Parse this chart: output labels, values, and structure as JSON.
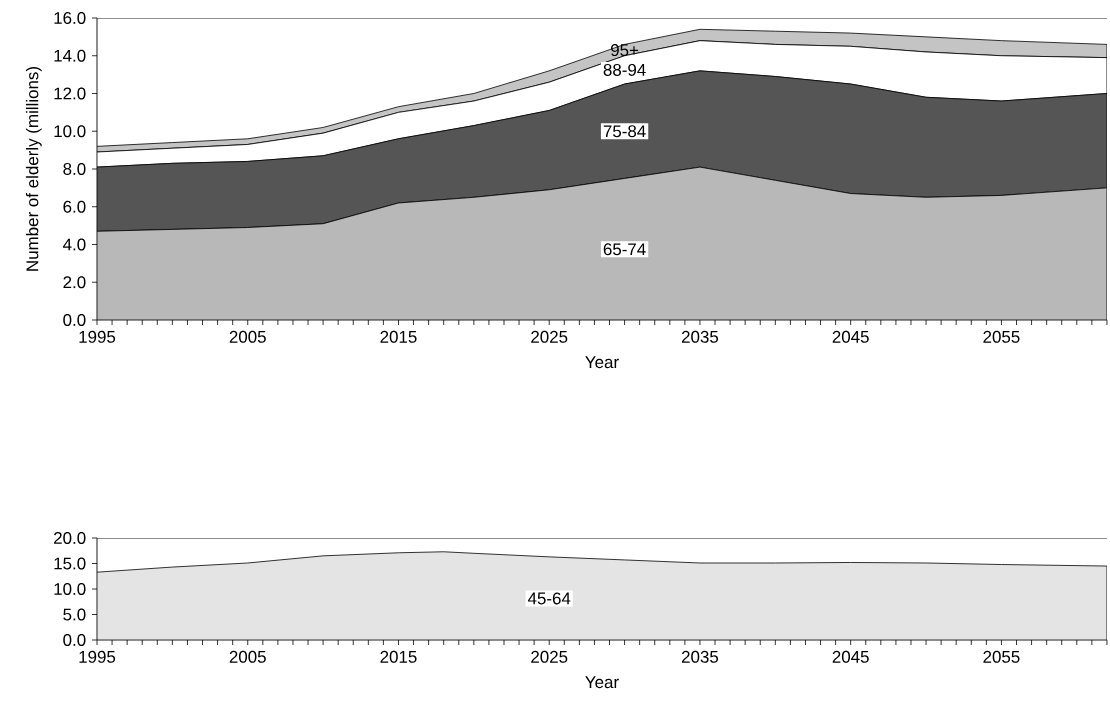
{
  "chart_data": [
    {
      "type": "area",
      "stacked": true,
      "xlabel": "Year",
      "ylabel": "Number of elderly (millions)",
      "x": [
        1995,
        2000,
        2005,
        2010,
        2015,
        2020,
        2025,
        2030,
        2035,
        2040,
        2045,
        2050,
        2055,
        2062
      ],
      "series": [
        {
          "name": "65-74",
          "color": "#b8b8b8",
          "values": [
            4.7,
            4.8,
            4.9,
            5.1,
            6.2,
            6.5,
            6.9,
            7.5,
            8.1,
            7.4,
            6.7,
            6.5,
            6.6,
            7.0
          ]
        },
        {
          "name": "75-84",
          "color": "#555555",
          "values": [
            3.4,
            3.5,
            3.5,
            3.6,
            3.4,
            3.8,
            4.2,
            5.0,
            5.1,
            5.5,
            5.8,
            5.3,
            5.0,
            5.0
          ]
        },
        {
          "name": "88-94",
          "color": "#ffffff",
          "values": [
            0.8,
            0.8,
            0.9,
            1.2,
            1.4,
            1.3,
            1.5,
            1.5,
            1.6,
            1.7,
            2.0,
            2.4,
            2.4,
            1.9
          ]
        },
        {
          "name": "95+",
          "color": "#c4c4c4",
          "values": [
            0.3,
            0.3,
            0.3,
            0.3,
            0.3,
            0.4,
            0.6,
            0.6,
            0.6,
            0.7,
            0.7,
            0.8,
            0.8,
            0.7
          ]
        }
      ],
      "xlim": [
        1995,
        2062
      ],
      "ylim": [
        0,
        16
      ],
      "xticks": [
        1995,
        {
          "value": 1996,
          "label": null
        },
        {
          "value": 1997,
          "label": null
        },
        {
          "value": 1998,
          "label": null
        },
        {
          "value": 1999,
          "label": null
        },
        {
          "value": 2000,
          "label": null
        },
        {
          "value": 2001,
          "label": null
        },
        {
          "value": 2002,
          "label": null
        },
        {
          "value": 2003,
          "label": null
        },
        {
          "value": 2004,
          "label": null
        },
        2005,
        {
          "value": 2006,
          "label": null
        },
        {
          "value": 2007,
          "label": null
        },
        {
          "value": 2008,
          "label": null
        },
        {
          "value": 2009,
          "label": null
        },
        {
          "value": 2010,
          "label": null
        },
        {
          "value": 2011,
          "label": null
        },
        {
          "value": 2012,
          "label": null
        },
        {
          "value": 2013,
          "label": null
        },
        {
          "value": 2014,
          "label": null
        },
        2015,
        {
          "value": 2016,
          "label": null
        },
        {
          "value": 2017,
          "label": null
        },
        {
          "value": 2018,
          "label": null
        },
        {
          "value": 2019,
          "label": null
        },
        {
          "value": 2020,
          "label": null
        },
        {
          "value": 2021,
          "label": null
        },
        {
          "value": 2022,
          "label": null
        },
        {
          "value": 2023,
          "label": null
        },
        {
          "value": 2024,
          "label": null
        },
        2025,
        {
          "value": 2026,
          "label": null
        },
        {
          "value": 2027,
          "label": null
        },
        {
          "value": 2028,
          "label": null
        },
        {
          "value": 2029,
          "label": null
        },
        {
          "value": 2030,
          "label": null
        },
        {
          "value": 2031,
          "label": null
        },
        {
          "value": 2032,
          "label": null
        },
        {
          "value": 2033,
          "label": null
        },
        {
          "value": 2034,
          "label": null
        },
        2035,
        {
          "value": 2036,
          "label": null
        },
        {
          "value": 2037,
          "label": null
        },
        {
          "value": 2038,
          "label": null
        },
        {
          "value": 2039,
          "label": null
        },
        {
          "value": 2040,
          "label": null
        },
        {
          "value": 2041,
          "label": null
        },
        {
          "value": 2042,
          "label": null
        },
        {
          "value": 2043,
          "label": null
        },
        {
          "value": 2044,
          "label": null
        },
        2045,
        {
          "value": 2046,
          "label": null
        },
        {
          "value": 2047,
          "label": null
        },
        {
          "value": 2048,
          "label": null
        },
        {
          "value": 2049,
          "label": null
        },
        {
          "value": 2050,
          "label": null
        },
        {
          "value": 2051,
          "label": null
        },
        {
          "value": 2052,
          "label": null
        },
        {
          "value": 2053,
          "label": null
        },
        {
          "value": 2054,
          "label": null
        },
        2055,
        {
          "value": 2056,
          "label": null
        },
        {
          "value": 2057,
          "label": null
        },
        {
          "value": 2058,
          "label": null
        },
        {
          "value": 2059,
          "label": null
        },
        {
          "value": 2060,
          "label": null
        },
        {
          "value": 2061,
          "label": null
        },
        {
          "value": 2062,
          "label": null
        }
      ],
      "yticks": [
        {
          "value": 0,
          "label": "0.0"
        },
        {
          "value": 2,
          "label": "2.0"
        },
        {
          "value": 4,
          "label": "4.0"
        },
        {
          "value": 6,
          "label": "6.0"
        },
        {
          "value": 8,
          "label": "8.0"
        },
        {
          "value": 10,
          "label": "10.0"
        },
        {
          "value": 12,
          "label": "12.0"
        },
        {
          "value": 14,
          "label": "14.0"
        },
        {
          "value": 16,
          "label": "16.0"
        }
      ]
    },
    {
      "type": "area",
      "xlabel": "Year",
      "x": [
        1995,
        2000,
        2005,
        2010,
        2015,
        2018,
        2020,
        2025,
        2030,
        2035,
        2040,
        2045,
        2050,
        2055,
        2062
      ],
      "series": [
        {
          "name": "45-64",
          "color": "#e4e4e4",
          "values": [
            13.3,
            14.3,
            15.1,
            16.5,
            17.1,
            17.3,
            17.0,
            16.3,
            15.7,
            15.1,
            15.1,
            15.2,
            15.1,
            14.8,
            14.5
          ]
        }
      ],
      "xlim": [
        1995,
        2062
      ],
      "ylim": [
        0,
        20
      ],
      "xticks": [
        1995,
        {
          "value": 1996,
          "label": null
        },
        {
          "value": 1997,
          "label": null
        },
        {
          "value": 1998,
          "label": null
        },
        {
          "value": 1999,
          "label": null
        },
        {
          "value": 2000,
          "label": null
        },
        {
          "value": 2001,
          "label": null
        },
        {
          "value": 2002,
          "label": null
        },
        {
          "value": 2003,
          "label": null
        },
        {
          "value": 2004,
          "label": null
        },
        2005,
        {
          "value": 2006,
          "label": null
        },
        {
          "value": 2007,
          "label": null
        },
        {
          "value": 2008,
          "label": null
        },
        {
          "value": 2009,
          "label": null
        },
        {
          "value": 2010,
          "label": null
        },
        {
          "value": 2011,
          "label": null
        },
        {
          "value": 2012,
          "label": null
        },
        {
          "value": 2013,
          "label": null
        },
        {
          "value": 2014,
          "label": null
        },
        2015,
        {
          "value": 2016,
          "label": null
        },
        {
          "value": 2017,
          "label": null
        },
        {
          "value": 2018,
          "label": null
        },
        {
          "value": 2019,
          "label": null
        },
        {
          "value": 2020,
          "label": null
        },
        {
          "value": 2021,
          "label": null
        },
        {
          "value": 2022,
          "label": null
        },
        {
          "value": 2023,
          "label": null
        },
        {
          "value": 2024,
          "label": null
        },
        2025,
        {
          "value": 2026,
          "label": null
        },
        {
          "value": 2027,
          "label": null
        },
        {
          "value": 2028,
          "label": null
        },
        {
          "value": 2029,
          "label": null
        },
        {
          "value": 2030,
          "label": null
        },
        {
          "value": 2031,
          "label": null
        },
        {
          "value": 2032,
          "label": null
        },
        {
          "value": 2033,
          "label": null
        },
        {
          "value": 2034,
          "label": null
        },
        2035,
        {
          "value": 2036,
          "label": null
        },
        {
          "value": 2037,
          "label": null
        },
        {
          "value": 2038,
          "label": null
        },
        {
          "value": 2039,
          "label": null
        },
        {
          "value": 2040,
          "label": null
        },
        {
          "value": 2041,
          "label": null
        },
        {
          "value": 2042,
          "label": null
        },
        {
          "value": 2043,
          "label": null
        },
        {
          "value": 2044,
          "label": null
        },
        2045,
        {
          "value": 2046,
          "label": null
        },
        {
          "value": 2047,
          "label": null
        },
        {
          "value": 2048,
          "label": null
        },
        {
          "value": 2049,
          "label": null
        },
        {
          "value": 2050,
          "label": null
        },
        {
          "value": 2051,
          "label": null
        },
        {
          "value": 2052,
          "label": null
        },
        {
          "value": 2053,
          "label": null
        },
        {
          "value": 2054,
          "label": null
        },
        2055,
        {
          "value": 2056,
          "label": null
        },
        {
          "value": 2057,
          "label": null
        },
        {
          "value": 2058,
          "label": null
        },
        {
          "value": 2059,
          "label": null
        },
        {
          "value": 2060,
          "label": null
        },
        {
          "value": 2061,
          "label": null
        },
        {
          "value": 2062,
          "label": null
        }
      ],
      "yticks": [
        {
          "value": 0,
          "label": "0.0"
        },
        {
          "value": 5,
          "label": "5.0"
        },
        {
          "value": 10,
          "label": "10.0"
        },
        {
          "value": 15,
          "label": "15.0"
        },
        {
          "value": 20,
          "label": "20.0"
        }
      ]
    }
  ]
}
